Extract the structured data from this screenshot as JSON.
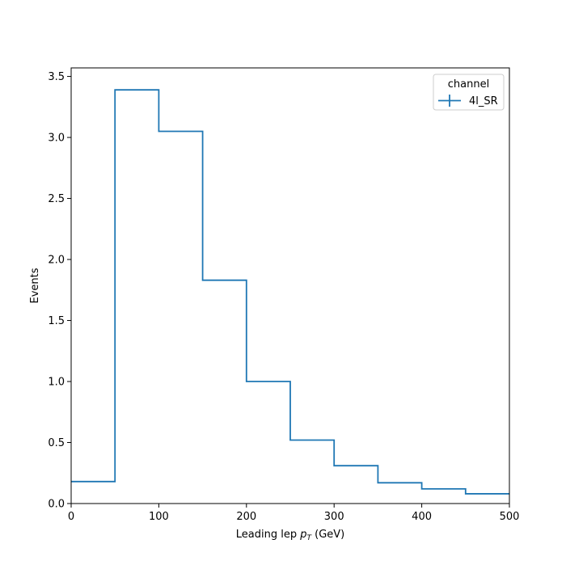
{
  "chart_data": {
    "type": "step",
    "title": "",
    "xlabel": "Leading lep",
    "xlabel_symbol": "p",
    "xlabel_subscript": "T",
    "xlabel_unit": "(GeV)",
    "ylabel": "Events",
    "xlim": [
      0,
      500
    ],
    "ylim": [
      0,
      3.57
    ],
    "xticks": [
      0,
      100,
      200,
      300,
      400,
      500
    ],
    "xtick_labels": [
      "0",
      "100",
      "200",
      "300",
      "400",
      "500"
    ],
    "yticks": [
      0.0,
      0.5,
      1.0,
      1.5,
      2.0,
      2.5,
      3.0,
      3.5
    ],
    "ytick_labels": [
      "0.0",
      "0.5",
      "1.0",
      "1.5",
      "2.0",
      "2.5",
      "3.0",
      "3.5"
    ],
    "bin_edges": [
      0,
      50,
      100,
      150,
      200,
      250,
      300,
      350,
      400,
      450,
      500
    ],
    "series": [
      {
        "name": "4l_SR",
        "color": "#1f77b4",
        "values": [
          0.18,
          3.39,
          3.05,
          1.83,
          1.0,
          0.52,
          0.31,
          0.17,
          0.12,
          0.08
        ]
      }
    ],
    "legend": {
      "title": "channel",
      "position": "top-right"
    },
    "grid": false
  }
}
